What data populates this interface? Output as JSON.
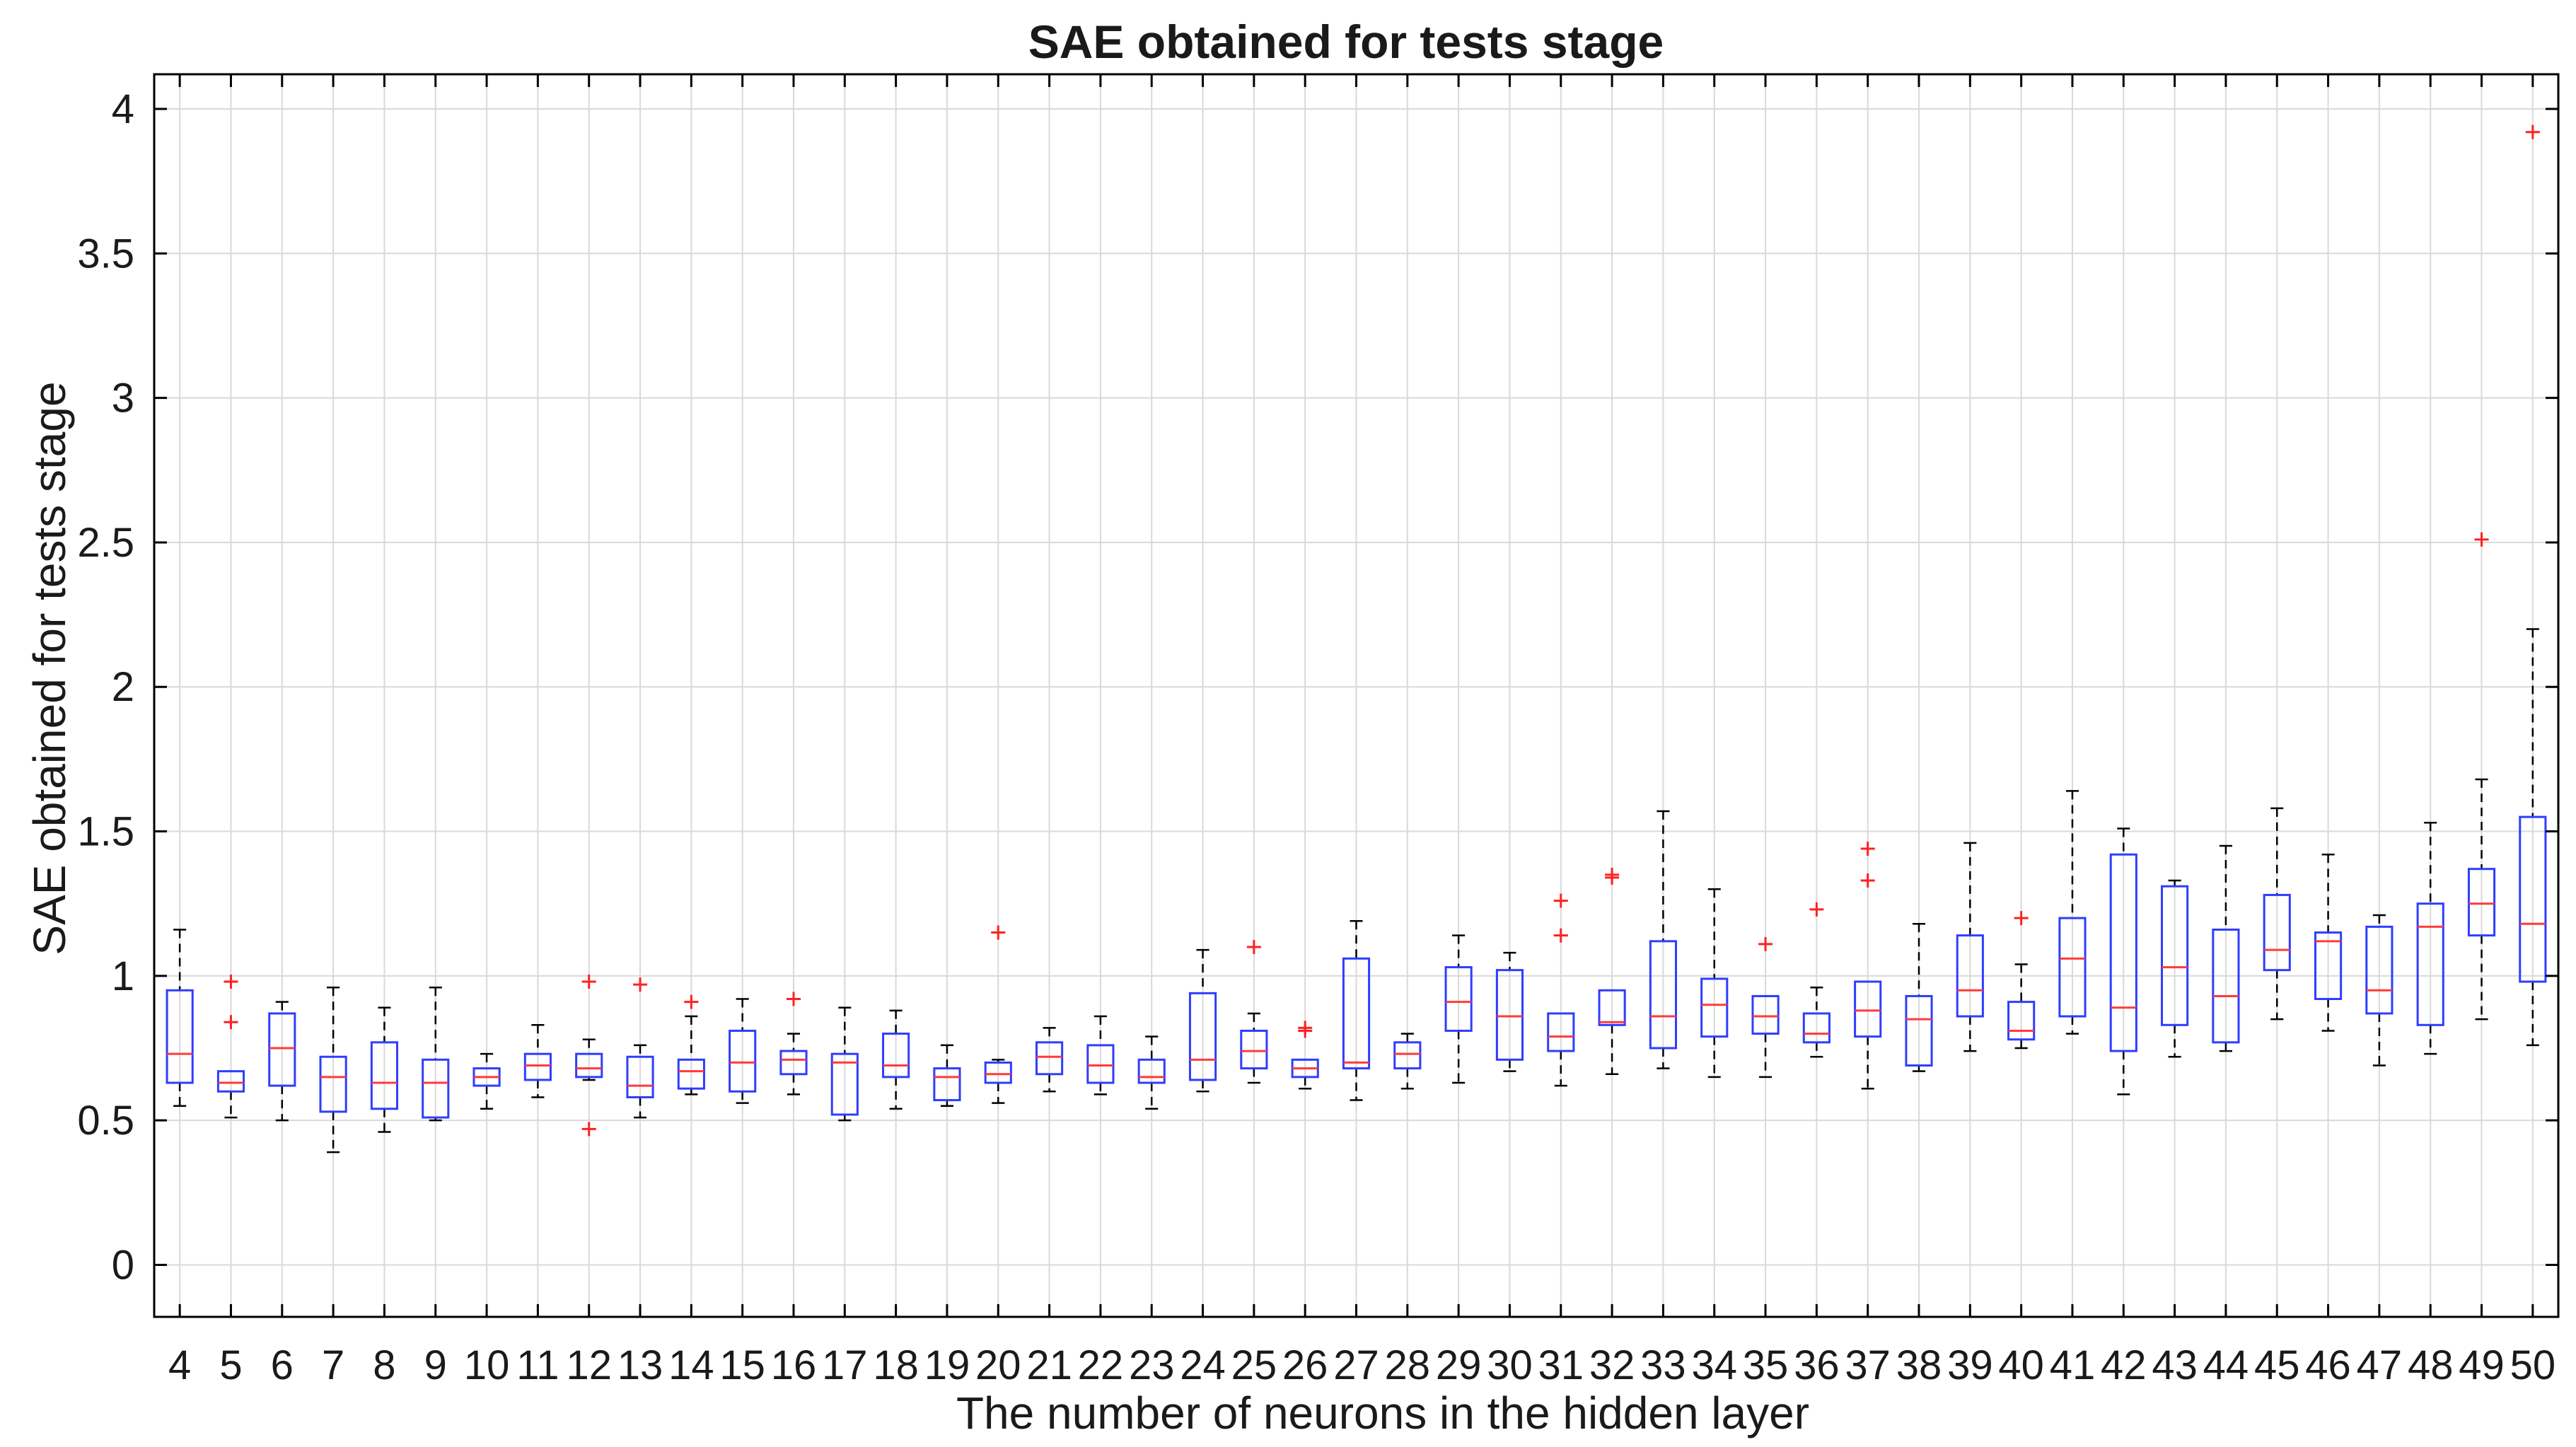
{
  "chart_data": {
    "type": "boxplot",
    "title": "SAE obtained for tests stage",
    "xlabel": "The number of neurons in the hidden layer",
    "ylabel": "SAE obtained for tests stage",
    "ylim": [
      -0.18,
      4.12
    ],
    "yticks": [
      0,
      0.5,
      1,
      1.5,
      2,
      2.5,
      3,
      3.5,
      4
    ],
    "ytick_labels": [
      "0",
      "0.5",
      "1",
      "1.5",
      "2",
      "2.5",
      "3",
      "3.5",
      "4"
    ],
    "grid": true,
    "categories": [
      "4",
      "5",
      "6",
      "7",
      "8",
      "9",
      "10",
      "11",
      "12",
      "13",
      "14",
      "15",
      "16",
      "17",
      "18",
      "19",
      "20",
      "21",
      "22",
      "23",
      "24",
      "25",
      "26",
      "27",
      "28",
      "29",
      "30",
      "31",
      "32",
      "33",
      "34",
      "35",
      "36",
      "37",
      "38",
      "39",
      "40",
      "41",
      "42",
      "43",
      "44",
      "45",
      "46",
      "47",
      "48",
      "49",
      "50"
    ],
    "colors": {
      "box": "#2f3dff",
      "median": "#ff3b3b",
      "whisker": "#000000",
      "outlier": "#ff2020",
      "grid": "#d9d9d9",
      "axis": "#000000"
    },
    "boxes": [
      {
        "min": 0.55,
        "q1": 0.63,
        "median": 0.73,
        "q3": 0.95,
        "max": 1.16,
        "outliers": []
      },
      {
        "min": 0.51,
        "q1": 0.6,
        "median": 0.63,
        "q3": 0.67,
        "max": 0.67,
        "outliers": [
          0.84,
          0.98
        ]
      },
      {
        "min": 0.5,
        "q1": 0.62,
        "median": 0.75,
        "q3": 0.87,
        "max": 0.91,
        "outliers": []
      },
      {
        "min": 0.39,
        "q1": 0.53,
        "median": 0.65,
        "q3": 0.72,
        "max": 0.96,
        "outliers": []
      },
      {
        "min": 0.46,
        "q1": 0.54,
        "median": 0.63,
        "q3": 0.77,
        "max": 0.89,
        "outliers": []
      },
      {
        "min": 0.5,
        "q1": 0.51,
        "median": 0.63,
        "q3": 0.71,
        "max": 0.96,
        "outliers": []
      },
      {
        "min": 0.54,
        "q1": 0.62,
        "median": 0.65,
        "q3": 0.68,
        "max": 0.73,
        "outliers": []
      },
      {
        "min": 0.58,
        "q1": 0.64,
        "median": 0.69,
        "q3": 0.73,
        "max": 0.83,
        "outliers": []
      },
      {
        "min": 0.64,
        "q1": 0.65,
        "median": 0.68,
        "q3": 0.73,
        "max": 0.78,
        "outliers": [
          0.47,
          0.98
        ]
      },
      {
        "min": 0.51,
        "q1": 0.58,
        "median": 0.62,
        "q3": 0.72,
        "max": 0.76,
        "outliers": [
          0.97
        ]
      },
      {
        "min": 0.59,
        "q1": 0.61,
        "median": 0.67,
        "q3": 0.71,
        "max": 0.86,
        "outliers": [
          0.91
        ]
      },
      {
        "min": 0.56,
        "q1": 0.6,
        "median": 0.7,
        "q3": 0.81,
        "max": 0.92,
        "outliers": []
      },
      {
        "min": 0.59,
        "q1": 0.66,
        "median": 0.71,
        "q3": 0.74,
        "max": 0.8,
        "outliers": [
          0.92
        ]
      },
      {
        "min": 0.5,
        "q1": 0.52,
        "median": 0.7,
        "q3": 0.73,
        "max": 0.89,
        "outliers": []
      },
      {
        "min": 0.54,
        "q1": 0.65,
        "median": 0.69,
        "q3": 0.8,
        "max": 0.88,
        "outliers": []
      },
      {
        "min": 0.55,
        "q1": 0.57,
        "median": 0.65,
        "q3": 0.68,
        "max": 0.76,
        "outliers": []
      },
      {
        "min": 0.56,
        "q1": 0.63,
        "median": 0.66,
        "q3": 0.7,
        "max": 0.71,
        "outliers": [
          1.15
        ]
      },
      {
        "min": 0.6,
        "q1": 0.66,
        "median": 0.72,
        "q3": 0.77,
        "max": 0.82,
        "outliers": []
      },
      {
        "min": 0.59,
        "q1": 0.63,
        "median": 0.69,
        "q3": 0.76,
        "max": 0.86,
        "outliers": []
      },
      {
        "min": 0.54,
        "q1": 0.63,
        "median": 0.65,
        "q3": 0.71,
        "max": 0.79,
        "outliers": []
      },
      {
        "min": 0.6,
        "q1": 0.64,
        "median": 0.71,
        "q3": 0.94,
        "max": 1.09,
        "outliers": []
      },
      {
        "min": 0.63,
        "q1": 0.68,
        "median": 0.74,
        "q3": 0.81,
        "max": 0.87,
        "outliers": [
          1.1
        ]
      },
      {
        "min": 0.61,
        "q1": 0.65,
        "median": 0.68,
        "q3": 0.71,
        "max": 0.71,
        "outliers": [
          0.81,
          0.82
        ]
      },
      {
        "min": 0.57,
        "q1": 0.68,
        "median": 0.7,
        "q3": 1.06,
        "max": 1.19,
        "outliers": []
      },
      {
        "min": 0.61,
        "q1": 0.68,
        "median": 0.73,
        "q3": 0.77,
        "max": 0.8,
        "outliers": []
      },
      {
        "min": 0.63,
        "q1": 0.81,
        "median": 0.91,
        "q3": 1.03,
        "max": 1.14,
        "outliers": []
      },
      {
        "min": 0.67,
        "q1": 0.71,
        "median": 0.86,
        "q3": 1.02,
        "max": 1.08,
        "outliers": []
      },
      {
        "min": 0.62,
        "q1": 0.74,
        "median": 0.79,
        "q3": 0.87,
        "max": 0.87,
        "outliers": [
          1.14,
          1.26
        ]
      },
      {
        "min": 0.66,
        "q1": 0.83,
        "median": 0.84,
        "q3": 0.95,
        "max": 0.95,
        "outliers": [
          1.34,
          1.35
        ]
      },
      {
        "min": 0.68,
        "q1": 0.75,
        "median": 0.86,
        "q3": 1.12,
        "max": 1.57,
        "outliers": []
      },
      {
        "min": 0.65,
        "q1": 0.79,
        "median": 0.9,
        "q3": 0.99,
        "max": 1.3,
        "outliers": []
      },
      {
        "min": 0.65,
        "q1": 0.8,
        "median": 0.86,
        "q3": 0.93,
        "max": 0.93,
        "outliers": [
          1.11
        ]
      },
      {
        "min": 0.72,
        "q1": 0.77,
        "median": 0.8,
        "q3": 0.87,
        "max": 0.96,
        "outliers": [
          1.23
        ]
      },
      {
        "min": 0.61,
        "q1": 0.79,
        "median": 0.88,
        "q3": 0.98,
        "max": 0.98,
        "outliers": [
          1.33,
          1.44
        ]
      },
      {
        "min": 0.67,
        "q1": 0.69,
        "median": 0.85,
        "q3": 0.93,
        "max": 1.18,
        "outliers": []
      },
      {
        "min": 0.74,
        "q1": 0.86,
        "median": 0.95,
        "q3": 1.14,
        "max": 1.46,
        "outliers": []
      },
      {
        "min": 0.75,
        "q1": 0.78,
        "median": 0.81,
        "q3": 0.91,
        "max": 1.04,
        "outliers": [
          1.2
        ]
      },
      {
        "min": 0.8,
        "q1": 0.86,
        "median": 1.06,
        "q3": 1.2,
        "max": 1.64,
        "outliers": []
      },
      {
        "min": 0.59,
        "q1": 0.74,
        "median": 0.89,
        "q3": 1.42,
        "max": 1.51,
        "outliers": []
      },
      {
        "min": 0.72,
        "q1": 0.83,
        "median": 1.03,
        "q3": 1.31,
        "max": 1.33,
        "outliers": []
      },
      {
        "min": 0.74,
        "q1": 0.77,
        "median": 0.93,
        "q3": 1.16,
        "max": 1.45,
        "outliers": []
      },
      {
        "min": 0.85,
        "q1": 1.02,
        "median": 1.09,
        "q3": 1.28,
        "max": 1.58,
        "outliers": []
      },
      {
        "min": 0.81,
        "q1": 0.92,
        "median": 1.12,
        "q3": 1.15,
        "max": 1.42,
        "outliers": []
      },
      {
        "min": 0.69,
        "q1": 0.87,
        "median": 0.95,
        "q3": 1.17,
        "max": 1.21,
        "outliers": []
      },
      {
        "min": 0.73,
        "q1": 0.83,
        "median": 1.17,
        "q3": 1.25,
        "max": 1.53,
        "outliers": []
      },
      {
        "min": 0.85,
        "q1": 1.14,
        "median": 1.25,
        "q3": 1.37,
        "max": 1.68,
        "outliers": [
          2.51
        ]
      },
      {
        "min": 0.76,
        "q1": 0.98,
        "median": 1.18,
        "q3": 1.55,
        "max": 2.2,
        "outliers": [
          3.92
        ]
      }
    ]
  }
}
